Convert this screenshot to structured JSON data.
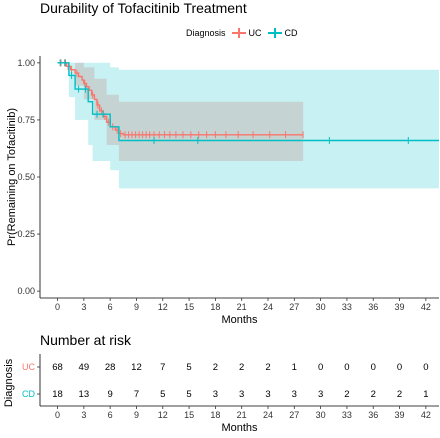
{
  "chart_data": [
    {
      "type": "line",
      "title": "Durability of Tofacitinib Treatment",
      "xlabel": "Months",
      "ylabel": "Pr(Remaining on Tofacitinib)",
      "legend_title": "Diagnosis",
      "legend_position": "top",
      "xlim": [
        -2,
        43.5
      ],
      "ylim": [
        -0.03,
        1.03
      ],
      "x_ticks": [
        0,
        3,
        6,
        9,
        12,
        15,
        18,
        21,
        24,
        27,
        30,
        33,
        36,
        39,
        42
      ],
      "y_ticks": [
        0.0,
        0.25,
        0.5,
        0.75,
        1.0
      ],
      "y_tick_labels": [
        "0.00",
        "0.25",
        "0.50",
        "0.75",
        "1.00"
      ],
      "series": [
        {
          "name": "UC",
          "color": "#F8766D",
          "fill": "#F8766D",
          "step": [
            [
              0,
              1.0
            ],
            [
              1.0,
              0.985
            ],
            [
              1.5,
              0.97
            ],
            [
              2.0,
              0.955
            ],
            [
              2.4,
              0.94
            ],
            [
              2.8,
              0.925
            ],
            [
              3.0,
              0.91
            ],
            [
              3.3,
              0.895
            ],
            [
              3.6,
              0.88
            ],
            [
              3.9,
              0.86
            ],
            [
              4.2,
              0.84
            ],
            [
              4.5,
              0.815
            ],
            [
              4.8,
              0.79
            ],
            [
              5.2,
              0.765
            ],
            [
              5.6,
              0.74
            ],
            [
              6.0,
              0.72
            ],
            [
              6.6,
              0.705
            ],
            [
              7.0,
              0.69
            ],
            [
              7.5,
              0.685
            ],
            [
              28,
              0.685
            ]
          ],
          "ci": [
            [
              0,
              1.0,
              1.0
            ],
            [
              2.0,
              0.9,
              1.0
            ],
            [
              3.0,
              0.84,
              0.98
            ],
            [
              4.2,
              0.75,
              0.93
            ],
            [
              5.6,
              0.64,
              0.86
            ],
            [
              7.0,
              0.57,
              0.83
            ],
            [
              28,
              0.57,
              0.83
            ]
          ],
          "censor_x": [
            0.4,
            0.8,
            1.2,
            1.6,
            2.2,
            3.1,
            4.0,
            4.6,
            5.0,
            5.4,
            5.8,
            6.3,
            6.8,
            7.2,
            7.7,
            8.1,
            8.5,
            8.9,
            9.3,
            9.7,
            10.1,
            10.5,
            11.0,
            11.6,
            12.2,
            12.8,
            13.5,
            14.3,
            15.2,
            16.1,
            17.0,
            18.0,
            19.2,
            20.6,
            22.3,
            24.2,
            26.0,
            28.0
          ]
        },
        {
          "name": "CD",
          "color": "#00BFC4",
          "fill": "#00BFC4",
          "step": [
            [
              0,
              1.0
            ],
            [
              1.3,
              0.945
            ],
            [
              2.0,
              0.885
            ],
            [
              3.5,
              0.83
            ],
            [
              4.0,
              0.775
            ],
            [
              6.0,
              0.72
            ],
            [
              7.0,
              0.66
            ],
            [
              43.5,
              0.66
            ]
          ],
          "ci": [
            [
              0,
              1.0,
              1.0
            ],
            [
              1.3,
              0.85,
              1.0
            ],
            [
              2.0,
              0.75,
              1.0
            ],
            [
              3.5,
              0.64,
              1.0
            ],
            [
              4.0,
              0.57,
              1.0
            ],
            [
              6.0,
              0.53,
              0.98
            ],
            [
              7.0,
              0.45,
              0.97
            ],
            [
              43.5,
              0.45,
              0.97
            ]
          ],
          "censor_x": [
            0.3,
            0.9,
            1.6,
            2.4,
            3.2,
            4.5,
            5.2,
            11.0,
            16.0,
            31.0,
            40.0
          ]
        }
      ]
    },
    {
      "type": "table",
      "title": "Number at risk",
      "xlabel": "Months",
      "ylabel": "Diagnosis",
      "x": [
        0,
        3,
        6,
        9,
        12,
        15,
        18,
        21,
        24,
        27,
        30,
        33,
        36,
        39,
        42
      ],
      "rows": [
        {
          "name": "UC",
          "color": "#F8766D",
          "values": [
            68,
            49,
            28,
            12,
            7,
            5,
            2,
            2,
            2,
            1,
            0,
            0,
            0,
            0,
            0
          ]
        },
        {
          "name": "CD",
          "color": "#00BFC4",
          "values": [
            18,
            13,
            9,
            7,
            5,
            5,
            3,
            3,
            3,
            3,
            3,
            2,
            2,
            2,
            1
          ]
        }
      ]
    }
  ]
}
